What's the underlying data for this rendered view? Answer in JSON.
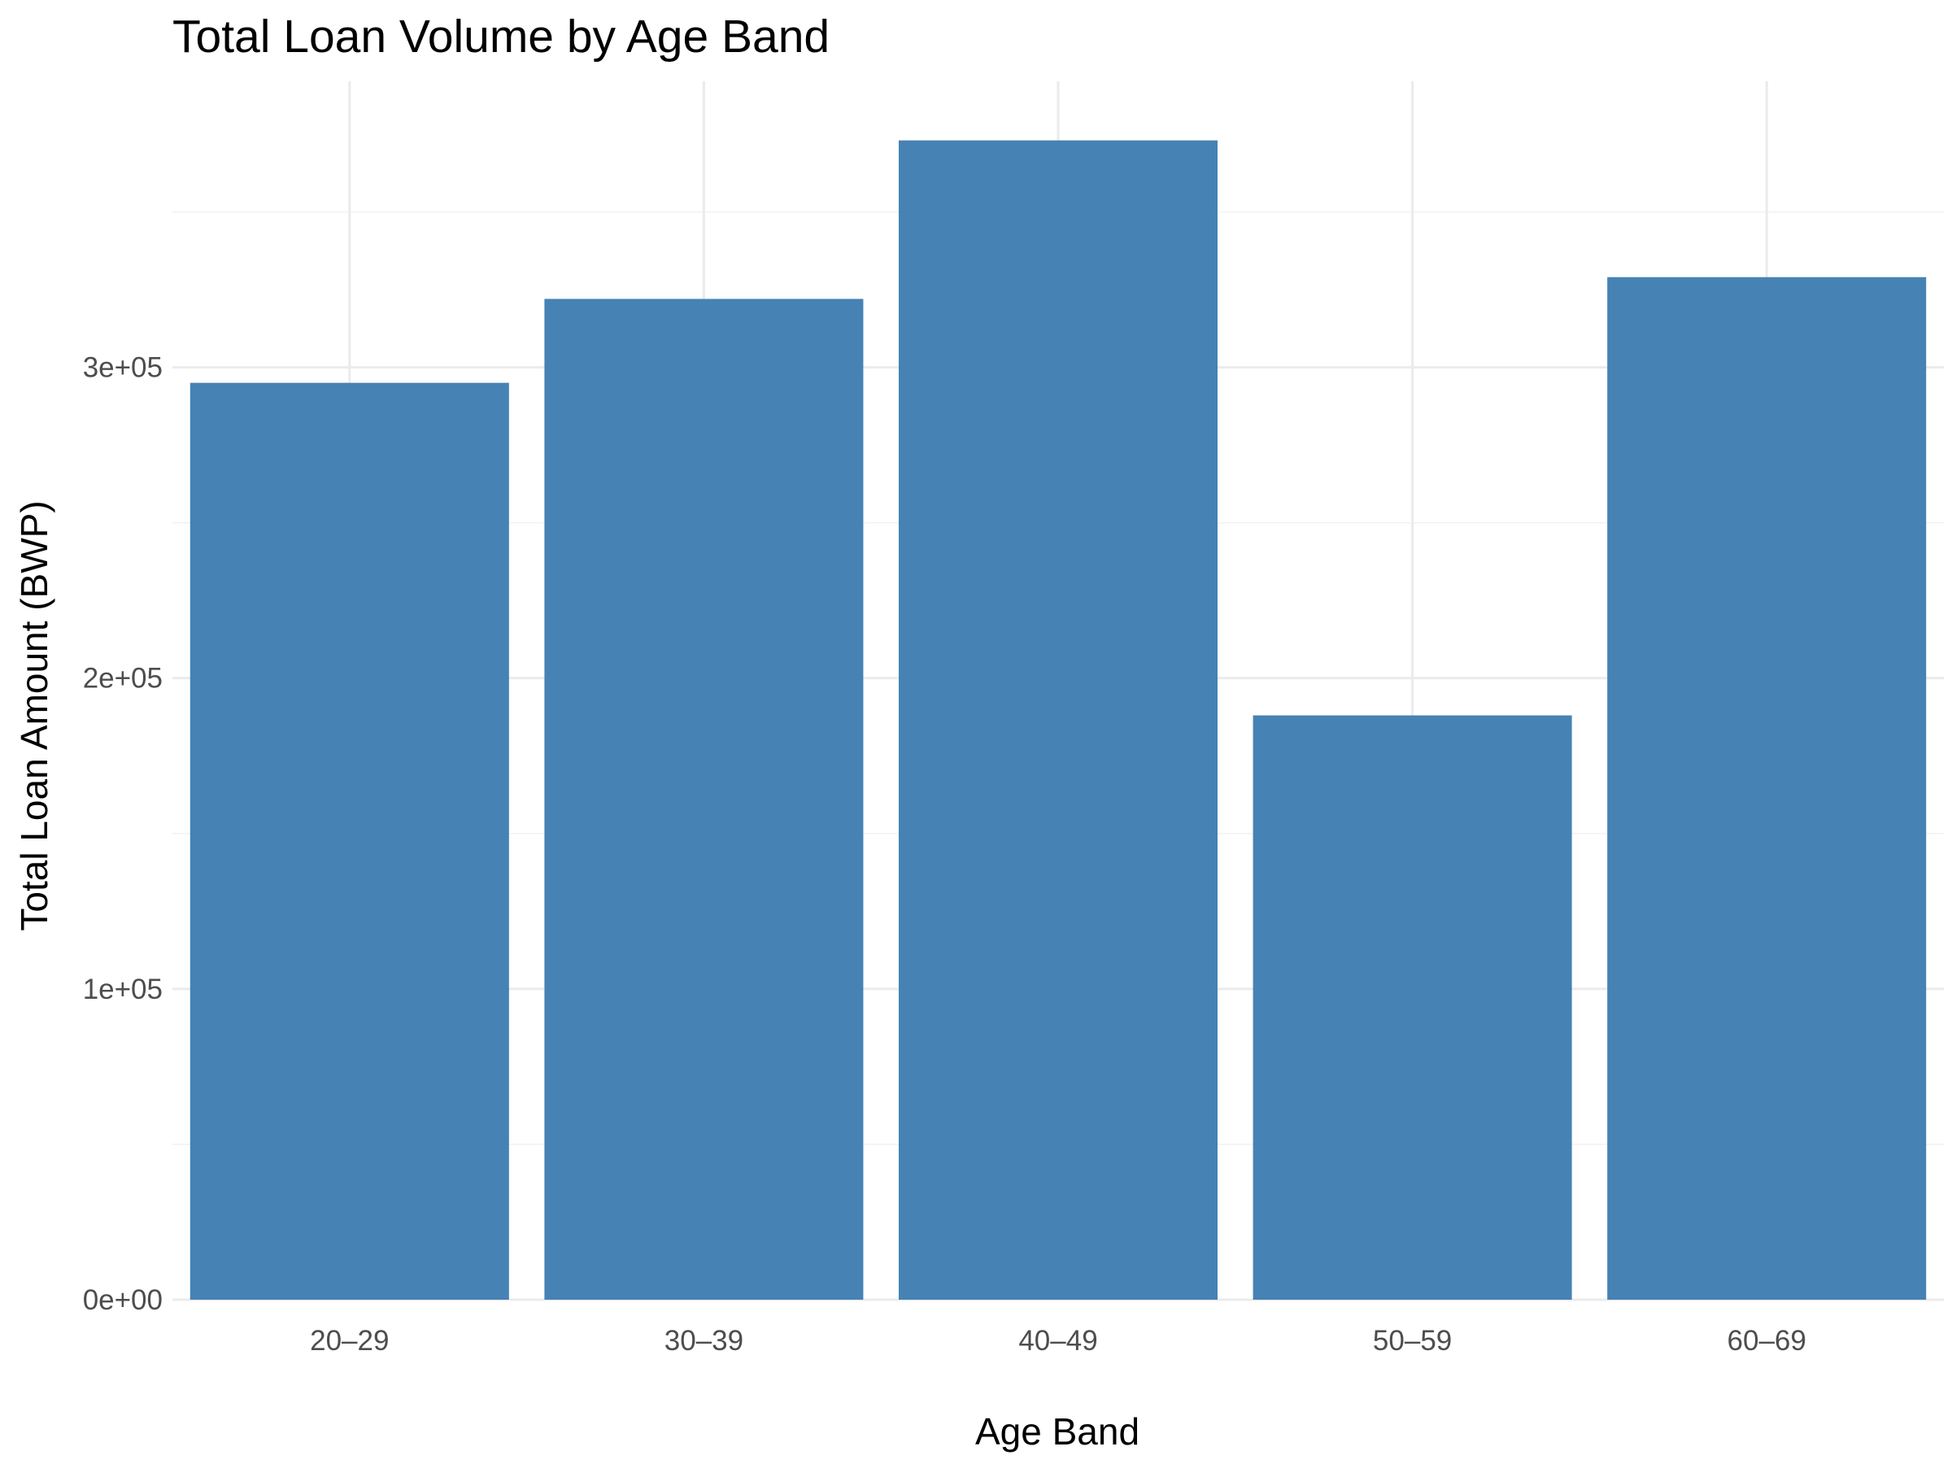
{
  "chart_data": {
    "type": "bar",
    "title": "Total Loan Volume by Age Band",
    "xlabel": "Age Band",
    "ylabel": "Total Loan Amount (BWP)",
    "categories": [
      "20–29",
      "30–39",
      "40–49",
      "50–59",
      "60–69"
    ],
    "values": [
      295000,
      322000,
      373000,
      188000,
      329000
    ],
    "ylim": [
      0,
      392000
    ],
    "yticks": [
      {
        "value": 0,
        "label": "0e+00"
      },
      {
        "value": 100000,
        "label": "1e+05"
      },
      {
        "value": 200000,
        "label": "2e+05"
      },
      {
        "value": 300000,
        "label": "3e+05"
      }
    ],
    "ygrid_minor": [
      50000,
      150000,
      250000,
      350000
    ],
    "grid": true,
    "legend": "none",
    "bar_color": "#4682B4"
  }
}
